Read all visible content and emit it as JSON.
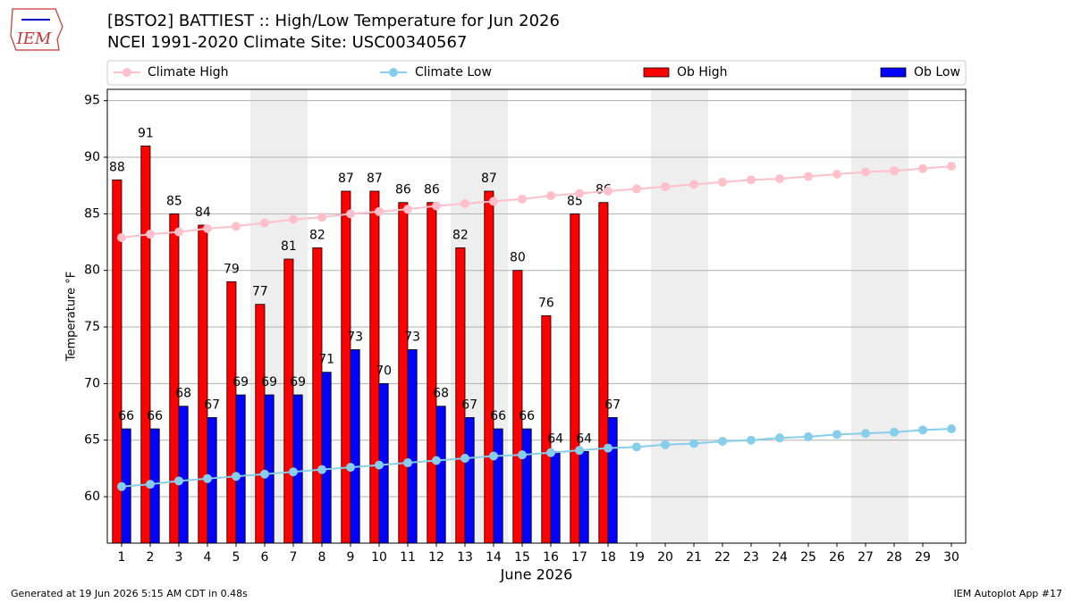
{
  "chart_data": {
    "type": "bar",
    "title": "[BSTO2] BATTIEST :: High/Low Temperature for Jun 2026",
    "subtitle": "NCEI 1991-2020 Climate Site: USC00340567",
    "logo_text": "IEM",
    "xlabel": "June 2026",
    "ylabel": "Temperature °F",
    "footer_left": "Generated at 19 Jun 2026 5:15 AM CDT in 0.48s",
    "footer_right": "IEM Autoplot App #17",
    "x": [
      1,
      2,
      3,
      4,
      5,
      6,
      7,
      8,
      9,
      10,
      11,
      12,
      13,
      14,
      15,
      16,
      17,
      18,
      19,
      20,
      21,
      22,
      23,
      24,
      25,
      26,
      27,
      28,
      29,
      30
    ],
    "xlim": [
      0.5,
      30.5
    ],
    "xticks": [
      1,
      2,
      3,
      4,
      5,
      6,
      7,
      8,
      9,
      10,
      11,
      12,
      13,
      14,
      15,
      16,
      17,
      18,
      19,
      20,
      21,
      22,
      23,
      24,
      25,
      26,
      27,
      28,
      29,
      30
    ],
    "ylim": [
      55.9,
      96.0
    ],
    "yticks": [
      60,
      65,
      70,
      75,
      80,
      85,
      90,
      95
    ],
    "grid": true,
    "shaded_x": [
      6,
      7,
      13,
      14,
      20,
      21,
      27,
      28
    ],
    "series": [
      {
        "name": "Climate High",
        "type": "line",
        "color": "#ffc0cb",
        "values": [
          82.9,
          83.2,
          83.4,
          83.7,
          83.9,
          84.2,
          84.5,
          84.7,
          85.0,
          85.2,
          85.4,
          85.7,
          85.9,
          86.1,
          86.3,
          86.6,
          86.8,
          87.0,
          87.2,
          87.4,
          87.6,
          87.8,
          88.0,
          88.1,
          88.3,
          88.5,
          88.7,
          88.8,
          89.0,
          89.2
        ]
      },
      {
        "name": "Climate Low",
        "type": "line",
        "color": "#87ceeb",
        "values": [
          60.9,
          61.1,
          61.4,
          61.6,
          61.8,
          62.0,
          62.2,
          62.4,
          62.6,
          62.8,
          63.0,
          63.2,
          63.4,
          63.6,
          63.7,
          63.9,
          64.1,
          64.3,
          64.4,
          64.6,
          64.7,
          64.9,
          65.0,
          65.2,
          65.3,
          65.5,
          65.6,
          65.7,
          65.9,
          66.0
        ]
      },
      {
        "name": "Ob High",
        "type": "bar",
        "color": "#ff0000",
        "values": [
          88,
          91,
          85,
          84,
          79,
          77,
          81,
          82,
          87,
          87,
          86,
          86,
          82,
          87,
          80,
          76,
          85,
          86,
          null,
          null,
          null,
          null,
          null,
          null,
          null,
          null,
          null,
          null,
          null,
          null
        ]
      },
      {
        "name": "Ob Low",
        "type": "bar",
        "color": "#0000ff",
        "values": [
          66,
          66,
          68,
          67,
          69,
          69,
          69,
          71,
          73,
          70,
          73,
          68,
          67,
          66,
          66,
          64,
          64,
          67,
          null,
          null,
          null,
          null,
          null,
          null,
          null,
          null,
          null,
          null,
          null,
          null
        ]
      }
    ]
  }
}
